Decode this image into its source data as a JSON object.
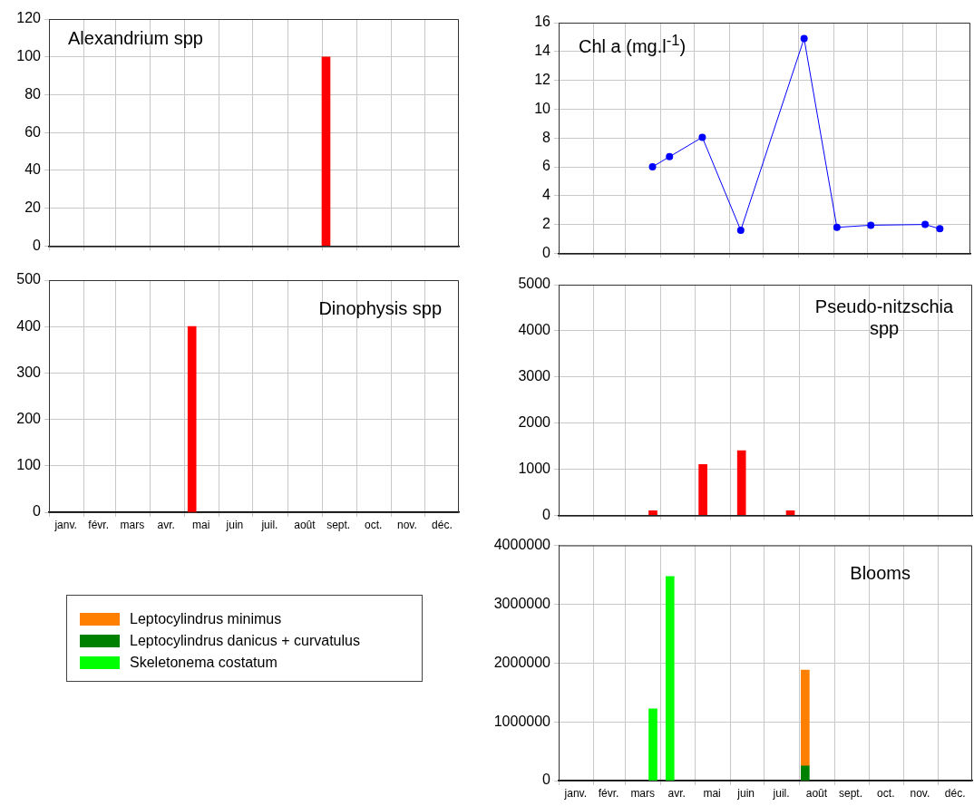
{
  "chart_data": [
    {
      "type": "bar",
      "title": "Alexandrium spp",
      "x": [
        "--09-04"
      ],
      "values": [
        100
      ],
      "color": "#ff0000",
      "xlim": [
        "--01-01",
        "--12-31"
      ],
      "xticks": [
        {
          "value": "--01-01",
          "label": null
        },
        {
          "value": "--02-01",
          "label": null
        },
        {
          "value": "--03-01",
          "label": null
        },
        {
          "value": "--04-01",
          "label": null
        },
        {
          "value": "--05-01",
          "label": null
        },
        {
          "value": "--06-01",
          "label": null
        },
        {
          "value": "--07-01",
          "label": null
        },
        {
          "value": "--08-01",
          "label": null
        },
        {
          "value": "--09-01",
          "label": null
        },
        {
          "value": "--10-01",
          "label": null
        },
        {
          "value": "--11-01",
          "label": null
        },
        {
          "value": "--12-01",
          "label": null
        }
      ],
      "ylim": [
        0,
        120
      ],
      "yticks": [
        0,
        20,
        40,
        60,
        80,
        100,
        120
      ],
      "grid": true,
      "tick_labels": "y"
    },
    {
      "type": "line",
      "title": "Chl a (mg.l$^{-1}$)",
      "x": [
        "--03-25",
        "--04-09",
        "--05-08",
        "--06-11",
        "--08-06",
        "--09-04",
        "--10-04",
        "--11-21",
        "--12-04"
      ],
      "values": [
        6.0,
        6.7,
        8.05,
        1.6,
        14.9,
        1.8,
        1.95,
        2.0,
        1.7
      ],
      "color": "#0000ff",
      "marker": "circle",
      "line_style": "solid",
      "xlim": [
        "--01-01",
        "--12-31"
      ],
      "xticks": [
        {
          "value": "--01-01",
          "label": null
        },
        {
          "value": "--02-01",
          "label": null
        },
        {
          "value": "--03-01",
          "label": null
        },
        {
          "value": "--04-01",
          "label": null
        },
        {
          "value": "--05-01",
          "label": null
        },
        {
          "value": "--06-01",
          "label": null
        },
        {
          "value": "--07-01",
          "label": null
        },
        {
          "value": "--08-01",
          "label": null
        },
        {
          "value": "--09-01",
          "label": null
        },
        {
          "value": "--10-01",
          "label": null
        },
        {
          "value": "--11-01",
          "label": null
        },
        {
          "value": "--12-01",
          "label": null
        }
      ],
      "ylim": [
        0,
        16
      ],
      "yticks": [
        0,
        2,
        4,
        6,
        8,
        10,
        12,
        14,
        16
      ],
      "grid": true,
      "tick_labels": "y"
    },
    {
      "type": "bar",
      "title": "Dinophysis spp",
      "x": [
        "--05-08"
      ],
      "values": [
        400
      ],
      "color": "#ff0000",
      "xlim": [
        "--01-01",
        "--12-31"
      ],
      "xticks": [
        {
          "value": "--01-01",
          "label": null
        },
        {
          "value": "--01-16",
          "label": "janv."
        },
        {
          "value": "--02-01",
          "label": null
        },
        {
          "value": "--02-14",
          "label": "févr."
        },
        {
          "value": "--03-01",
          "label": null
        },
        {
          "value": "--03-16",
          "label": "mars"
        },
        {
          "value": "--04-01",
          "label": null
        },
        {
          "value": "--04-15",
          "label": "avr."
        },
        {
          "value": "--05-01",
          "label": null
        },
        {
          "value": "--05-16",
          "label": "mai"
        },
        {
          "value": "--06-01",
          "label": null
        },
        {
          "value": "--06-15",
          "label": "juin"
        },
        {
          "value": "--07-01",
          "label": null
        },
        {
          "value": "--07-16",
          "label": "juil."
        },
        {
          "value": "--08-01",
          "label": null
        },
        {
          "value": "--08-16",
          "label": "août"
        },
        {
          "value": "--09-01",
          "label": null
        },
        {
          "value": "--09-15",
          "label": "sept."
        },
        {
          "value": "--10-01",
          "label": null
        },
        {
          "value": "--10-16",
          "label": "oct."
        },
        {
          "value": "--11-01",
          "label": null
        },
        {
          "value": "--11-15",
          "label": "nov."
        },
        {
          "value": "--12-01",
          "label": null
        },
        {
          "value": "--12-16",
          "label": "déc."
        }
      ],
      "ylim": [
        0,
        500
      ],
      "yticks": [
        0,
        100,
        200,
        300,
        400,
        500
      ],
      "grid": true
    },
    {
      "type": "bar",
      "title": "Pseudo-nitzschia spp",
      "x": [
        "--03-25",
        "--05-08",
        "--06-11",
        "--07-24"
      ],
      "values": [
        100,
        1100,
        1400,
        100
      ],
      "color": "#ff0000",
      "xlim": [
        "--01-01",
        "--12-31"
      ],
      "xticks": [
        {
          "value": "--01-01",
          "label": null
        },
        {
          "value": "--02-01",
          "label": null
        },
        {
          "value": "--03-01",
          "label": null
        },
        {
          "value": "--04-01",
          "label": null
        },
        {
          "value": "--05-01",
          "label": null
        },
        {
          "value": "--06-01",
          "label": null
        },
        {
          "value": "--07-01",
          "label": null
        },
        {
          "value": "--08-01",
          "label": null
        },
        {
          "value": "--09-01",
          "label": null
        },
        {
          "value": "--10-01",
          "label": null
        },
        {
          "value": "--11-01",
          "label": null
        },
        {
          "value": "--12-01",
          "label": null
        }
      ],
      "ylim": [
        0,
        5000
      ],
      "yticks": [
        0,
        1000,
        2000,
        3000,
        4000,
        5000
      ],
      "grid": true,
      "tick_labels": "y"
    },
    {
      "type": "bar",
      "title": "Blooms",
      "stacked": true,
      "legend": "left",
      "x": [
        "--03-25",
        "--04-09",
        "--08-06"
      ],
      "series": [
        {
          "name": "Skeletonema costatum",
          "color": "#00ff00",
          "values": [
            1220000,
            3470000,
            null
          ]
        },
        {
          "name": "Leptocylindrus danicus + curvatulus",
          "color": "#008000",
          "values": [
            null,
            null,
            250000
          ]
        },
        {
          "name": "Leptocylindrus minimus",
          "color": "#ff8000",
          "values": [
            null,
            null,
            1630000
          ]
        }
      ],
      "xlim": [
        "--01-01",
        "--12-31"
      ],
      "xticks": [
        {
          "value": "--01-01",
          "label": null
        },
        {
          "value": "--01-16",
          "label": "janv."
        },
        {
          "value": "--02-01",
          "label": null
        },
        {
          "value": "--02-14",
          "label": "févr."
        },
        {
          "value": "--03-01",
          "label": null
        },
        {
          "value": "--03-16",
          "label": "mars"
        },
        {
          "value": "--04-01",
          "label": null
        },
        {
          "value": "--04-15",
          "label": "avr."
        },
        {
          "value": "--05-01",
          "label": null
        },
        {
          "value": "--05-16",
          "label": "mai"
        },
        {
          "value": "--06-01",
          "label": null
        },
        {
          "value": "--06-15",
          "label": "juin"
        },
        {
          "value": "--07-01",
          "label": null
        },
        {
          "value": "--07-16",
          "label": "juil."
        },
        {
          "value": "--08-01",
          "label": null
        },
        {
          "value": "--08-16",
          "label": "août"
        },
        {
          "value": "--09-01",
          "label": null
        },
        {
          "value": "--09-15",
          "label": "sept."
        },
        {
          "value": "--10-01",
          "label": null
        },
        {
          "value": "--10-16",
          "label": "oct."
        },
        {
          "value": "--11-01",
          "label": null
        },
        {
          "value": "--11-15",
          "label": "nov."
        },
        {
          "value": "--12-01",
          "label": null
        },
        {
          "value": "--12-16",
          "label": "déc."
        }
      ],
      "ylim": [
        0,
        4000000
      ],
      "yticks": [
        0,
        1000000,
        2000000,
        3000000,
        4000000
      ],
      "grid": true
    }
  ]
}
